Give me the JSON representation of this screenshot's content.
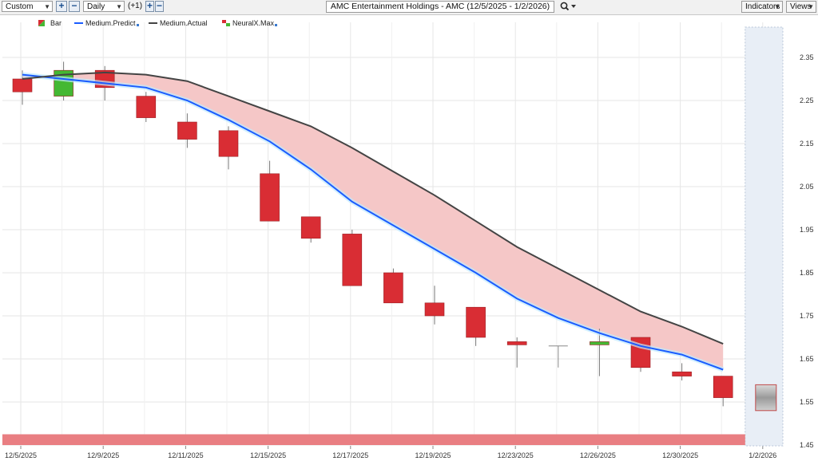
{
  "toolbar": {
    "range_select": "Custom",
    "zoom_in_label": "+",
    "zoom_out_label": "−",
    "period_select": "Daily",
    "offset_label": "(+1)",
    "step_in_label": "+",
    "step_out_label": "−",
    "title": "AMC Entertainment Holdings - AMC (12/5/2025 - 1/2/2026)",
    "search_icon": "magnifier-icon",
    "indicators_label": "Indicators",
    "views_label": "Views"
  },
  "chart_data": {
    "type": "candlestick",
    "title": "AMC Entertainment Holdings - AMC (12/5/2025 - 1/2/2026)",
    "legend": [
      "Bar",
      "Medium.Predict",
      "Medium.Actual",
      "NeuralX.Max"
    ],
    "legend_position": "top-left",
    "x_tick_labels": [
      "12/5/2025",
      "12/9/2025",
      "12/11/2025",
      "12/15/2025",
      "12/17/2025",
      "12/19/2025",
      "12/23/2025",
      "12/26/2025",
      "12/30/2025",
      "1/2/2026"
    ],
    "y_tick_labels": [
      "2.35",
      "2.25",
      "2.15",
      "2.05",
      "1.95",
      "1.85",
      "1.75",
      "1.65",
      "1.55",
      "1.45"
    ],
    "ylim": [
      1.45,
      2.35
    ],
    "grid": true,
    "bars": [
      {
        "open": 2.27,
        "high": 2.32,
        "low": 2.24,
        "close": 2.3,
        "color": "red"
      },
      {
        "open": 2.26,
        "high": 2.34,
        "low": 2.25,
        "close": 2.32,
        "color": "green"
      },
      {
        "open": 2.32,
        "high": 2.33,
        "low": 2.25,
        "close": 2.28,
        "color": "red"
      },
      {
        "open": 2.26,
        "high": 2.27,
        "low": 2.2,
        "close": 2.21,
        "color": "red"
      },
      {
        "open": 2.2,
        "high": 2.22,
        "low": 2.14,
        "close": 2.16,
        "color": "red"
      },
      {
        "open": 2.18,
        "high": 2.19,
        "low": 2.09,
        "close": 2.12,
        "color": "red"
      },
      {
        "open": 2.08,
        "high": 2.11,
        "low": 1.97,
        "close": 1.97,
        "color": "red"
      },
      {
        "open": 1.98,
        "high": 1.98,
        "low": 1.92,
        "close": 1.93,
        "color": "red"
      },
      {
        "open": 1.94,
        "high": 1.95,
        "low": 1.82,
        "close": 1.82,
        "color": "red"
      },
      {
        "open": 1.85,
        "high": 1.86,
        "low": 1.78,
        "close": 1.78,
        "color": "red"
      },
      {
        "open": 1.78,
        "high": 1.82,
        "low": 1.73,
        "close": 1.75,
        "color": "red"
      },
      {
        "open": 1.77,
        "high": 1.77,
        "low": 1.68,
        "close": 1.7,
        "color": "red"
      },
      {
        "open": 1.69,
        "high": 1.7,
        "low": 1.63,
        "close": 1.685,
        "color": "red"
      },
      {
        "open": 1.68,
        "high": 1.68,
        "low": 1.63,
        "close": 1.68,
        "color": "neutral"
      },
      {
        "open": 1.685,
        "high": 1.72,
        "low": 1.61,
        "close": 1.69,
        "color": "green"
      },
      {
        "open": 1.7,
        "high": 1.7,
        "low": 1.62,
        "close": 1.63,
        "color": "red"
      },
      {
        "open": 1.62,
        "high": 1.64,
        "low": 1.6,
        "close": 1.61,
        "color": "red"
      },
      {
        "open": 1.61,
        "high": 1.61,
        "low": 1.54,
        "close": 1.56,
        "color": "red"
      }
    ],
    "forecast_bar": {
      "open": 1.59,
      "close": 1.53,
      "color": "gray"
    },
    "series": [
      {
        "name": "Medium.Predict",
        "color": "#1a5cff",
        "values": [
          2.31,
          2.3,
          2.29,
          2.28,
          2.25,
          2.205,
          2.155,
          2.09,
          2.015,
          1.96,
          1.905,
          1.85,
          1.79,
          1.745,
          1.71,
          1.68,
          1.66,
          1.625
        ]
      },
      {
        "name": "Medium.Actual",
        "color": "#444444",
        "values": [
          2.3,
          2.31,
          2.315,
          2.31,
          2.295,
          2.26,
          2.225,
          2.19,
          2.14,
          2.085,
          2.03,
          1.97,
          1.91,
          1.86,
          1.81,
          1.76,
          1.725,
          1.685
        ]
      }
    ],
    "colors": {
      "up": "#44b833",
      "down": "#d92d34",
      "fill_between": "#f5c7c7",
      "bottom_band": "#e97e82",
      "forecast_zone": "#e8eef6"
    }
  }
}
